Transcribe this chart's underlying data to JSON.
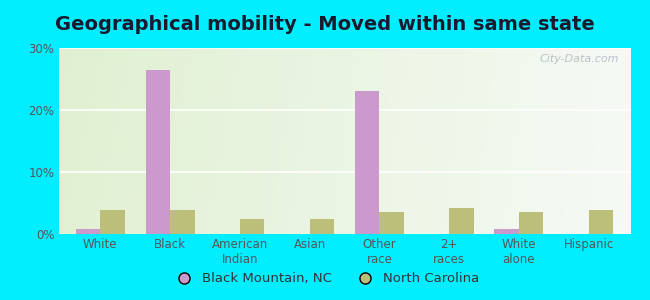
{
  "title": "Geographical mobility - Moved within same state",
  "categories": [
    "White",
    "Black",
    "American\nIndian",
    "Asian",
    "Other\nrace",
    "2+\nraces",
    "White\nalone",
    "Hispanic"
  ],
  "city_values": [
    0.8,
    26.5,
    0.0,
    0.0,
    23.0,
    0.0,
    0.8,
    0.0
  ],
  "state_values": [
    3.8,
    3.8,
    2.5,
    2.5,
    3.6,
    4.2,
    3.6,
    3.8
  ],
  "city_color": "#cc99cc",
  "state_color": "#bbbf7a",
  "ylim": [
    0,
    30
  ],
  "yticks": [
    0,
    10,
    20,
    30
  ],
  "yticklabels": [
    "0%",
    "10%",
    "20%",
    "30%"
  ],
  "city_label": "Black Mountain, NC",
  "state_label": "North Carolina",
  "outer_bg": "#00eeff",
  "bar_width": 0.35,
  "title_fontsize": 14,
  "tick_fontsize": 8.5,
  "legend_fontsize": 9.5
}
